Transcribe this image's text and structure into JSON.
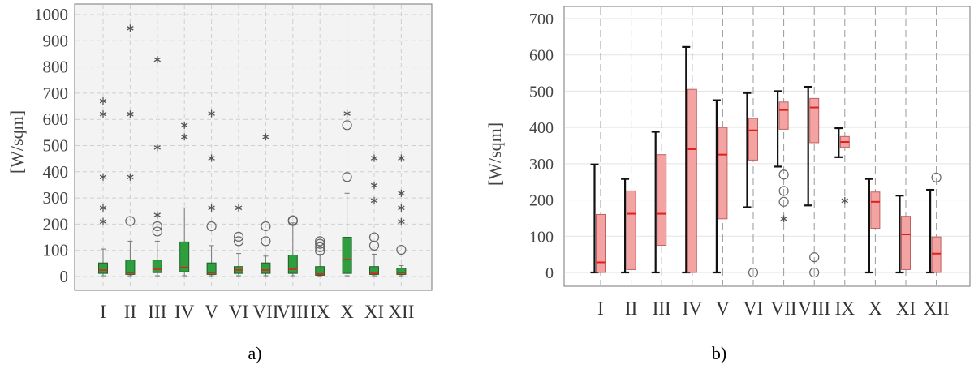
{
  "colors": {
    "left_box": "#2e9e3f",
    "left_box_edge": "#1c5e26",
    "left_median": "#e11f1f",
    "left_whisker": "#777777",
    "right_box": "#f4a3a3",
    "right_box_edge": "#c06060",
    "right_median": "#e11f1f",
    "right_whisker": "#111111",
    "outlier": "#666666",
    "plot_bg": "#f3f3f3",
    "grid": "#cfcfcf"
  },
  "chart_data": [
    {
      "type": "box",
      "panel_label": "a)",
      "ylabel": "[W/sqm]",
      "ylim": [
        0,
        1000
      ],
      "yticks": [
        0,
        100,
        200,
        300,
        400,
        500,
        600,
        700,
        800,
        900,
        1000
      ],
      "grid": true,
      "categories": [
        "I",
        "II",
        "III",
        "IV",
        "V",
        "VI",
        "VII",
        "VIII",
        "IX",
        "X",
        "XI",
        "XII"
      ],
      "boxes": [
        {
          "whislo": 3,
          "q1": 12,
          "med": 25,
          "q3": 52,
          "whishi": 105,
          "circles": [],
          "stars": [
            210,
            262,
            380,
            620,
            670
          ]
        },
        {
          "whislo": 3,
          "q1": 8,
          "med": 15,
          "q3": 63,
          "whishi": 135,
          "circles": [
            212
          ],
          "stars": [
            380,
            620,
            948
          ]
        },
        {
          "whislo": 3,
          "q1": 15,
          "med": 28,
          "q3": 63,
          "whishi": 135,
          "circles": [
            172,
            192
          ],
          "stars": [
            235,
            493,
            828
          ]
        },
        {
          "whislo": 3,
          "q1": 18,
          "med": 35,
          "q3": 132,
          "whishi": 262,
          "circles": [],
          "stars": [
            533,
            578
          ]
        },
        {
          "whislo": 3,
          "q1": 8,
          "med": 15,
          "q3": 52,
          "whishi": 118,
          "circles": [
            192
          ],
          "stars": [
            262,
            452,
            622
          ]
        },
        {
          "whislo": 3,
          "q1": 12,
          "med": 25,
          "q3": 38,
          "whishi": 88,
          "circles": [
            135,
            152
          ],
          "stars": [
            262
          ]
        },
        {
          "whislo": 3,
          "q1": 12,
          "med": 25,
          "q3": 52,
          "whishi": 78,
          "circles": [
            135,
            192
          ],
          "stars": [
            533
          ]
        },
        {
          "whislo": 3,
          "q1": 12,
          "med": 28,
          "q3": 82,
          "whishi": 205,
          "circles": [
            212,
            215
          ],
          "stars": []
        },
        {
          "whislo": 3,
          "q1": 5,
          "med": 10,
          "q3": 38,
          "whishi": 85,
          "circles": [
            98,
            112,
            125,
            135
          ],
          "stars": []
        },
        {
          "whislo": 3,
          "q1": 12,
          "med": 65,
          "q3": 150,
          "whishi": 318,
          "circles": [
            380,
            578
          ],
          "stars": [
            622
          ]
        },
        {
          "whislo": 3,
          "q1": 8,
          "med": 12,
          "q3": 38,
          "whishi": 85,
          "circles": [
            118,
            150
          ],
          "stars": [
            290,
            348,
            452
          ]
        },
        {
          "whislo": 3,
          "q1": 8,
          "med": 15,
          "q3": 32,
          "whishi": 42,
          "circles": [
            102
          ],
          "stars": [
            210,
            262,
            318,
            452
          ]
        }
      ]
    },
    {
      "type": "box",
      "panel_label": "b)",
      "ylabel": "[W/sqm]",
      "ylim": [
        0,
        700
      ],
      "yticks": [
        0,
        100,
        200,
        300,
        400,
        500,
        600,
        700
      ],
      "grid": true,
      "categories": [
        "I",
        "II",
        "III",
        "IV",
        "V",
        "VI",
        "VII",
        "VIII",
        "IX",
        "X",
        "XI",
        "XII"
      ],
      "boxes": [
        {
          "whislo": 0,
          "q1": 0,
          "med": 28,
          "q3": 160,
          "whishi": 298,
          "circles": [],
          "stars": []
        },
        {
          "whislo": 0,
          "q1": 8,
          "med": 162,
          "q3": 225,
          "whishi": 258,
          "circles": [],
          "stars": []
        },
        {
          "whislo": 0,
          "q1": 75,
          "med": 162,
          "q3": 325,
          "whishi": 388,
          "circles": [],
          "stars": []
        },
        {
          "whislo": 0,
          "q1": 0,
          "med": 340,
          "q3": 505,
          "whishi": 622,
          "circles": [],
          "stars": []
        },
        {
          "whislo": 0,
          "q1": 148,
          "med": 325,
          "q3": 400,
          "whishi": 475,
          "circles": [],
          "stars": []
        },
        {
          "whislo": 180,
          "q1": 310,
          "med": 392,
          "q3": 425,
          "whishi": 495,
          "circles": [
            0
          ],
          "stars": []
        },
        {
          "whislo": 292,
          "q1": 395,
          "med": 448,
          "q3": 470,
          "whishi": 500,
          "circles": [
            195,
            225,
            270
          ],
          "stars": [
            148
          ]
        },
        {
          "whislo": 185,
          "q1": 358,
          "med": 455,
          "q3": 480,
          "whishi": 512,
          "circles": [
            0,
            42
          ],
          "stars": []
        },
        {
          "whislo": 318,
          "q1": 345,
          "med": 360,
          "q3": 375,
          "whishi": 398,
          "circles": [],
          "stars": [
            198
          ]
        },
        {
          "whislo": 0,
          "q1": 122,
          "med": 195,
          "q3": 222,
          "whishi": 258,
          "circles": [],
          "stars": []
        },
        {
          "whislo": 0,
          "q1": 8,
          "med": 105,
          "q3": 155,
          "whishi": 212,
          "circles": [],
          "stars": []
        },
        {
          "whislo": 0,
          "q1": 0,
          "med": 52,
          "q3": 98,
          "whishi": 228,
          "circles": [
            262
          ],
          "stars": []
        }
      ]
    }
  ]
}
